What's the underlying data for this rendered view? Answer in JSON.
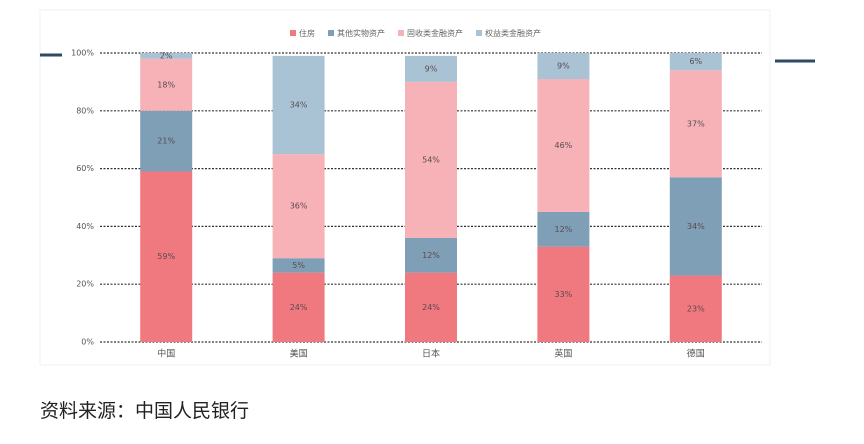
{
  "chart_data": {
    "type": "stacked-bar",
    "categories": [
      "中国",
      "美国",
      "日本",
      "英国",
      "德国"
    ],
    "series": [
      {
        "name": "住房",
        "color": "#f0797f",
        "values": [
          59,
          24,
          24,
          33,
          23
        ],
        "value_labels": [
          "59%",
          "24%",
          "24%",
          "33%",
          "23%"
        ]
      },
      {
        "name": "其他实物资产",
        "color": "#7f9fb6",
        "values": [
          21,
          5,
          12,
          12,
          34
        ],
        "value_labels": [
          "21%",
          "5%",
          "12%",
          "12%",
          "34%"
        ]
      },
      {
        "name": "固收类金融资产",
        "color": "#f7b2b7",
        "values": [
          18,
          36,
          54,
          46,
          37
        ],
        "value_labels": [
          "18%",
          "36%",
          "54%",
          "46%",
          "37%"
        ]
      },
      {
        "name": "权益类金融资产",
        "color": "#aac3d4",
        "values": [
          2,
          34,
          9,
          9,
          6
        ],
        "value_labels": [
          "2%",
          "34%",
          "9%",
          "9%",
          "6%"
        ]
      }
    ],
    "ylim": [
      0,
      100
    ],
    "yticks": [
      {
        "value": 0,
        "label": "0%"
      },
      {
        "value": 20,
        "label": "20%"
      },
      {
        "value": 40,
        "label": "40%"
      },
      {
        "value": 60,
        "label": "60%"
      },
      {
        "value": 80,
        "label": "80%"
      },
      {
        "value": 100,
        "label": "100%"
      }
    ],
    "grid": true
  },
  "source": "资料来源：中国人民银行"
}
